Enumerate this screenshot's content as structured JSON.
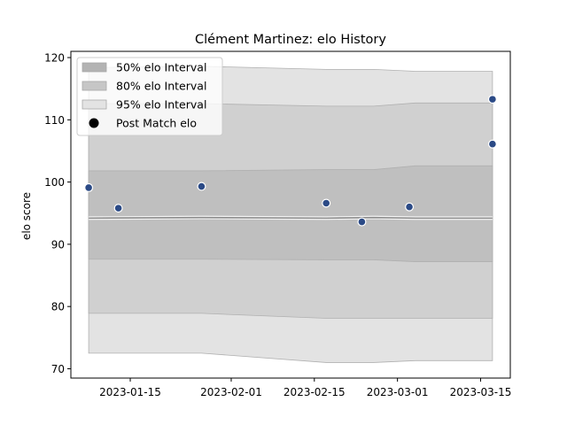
{
  "chart_data": {
    "type": "line",
    "title": "Clément Martinez: elo History",
    "xlabel": "",
    "ylabel": "elo score",
    "x_ticks": [
      "2023-01-15",
      "2023-02-01",
      "2023-02-15",
      "2023-03-01",
      "2023-03-15"
    ],
    "y_ticks": [
      70,
      80,
      90,
      100,
      110,
      120
    ],
    "xlim": [
      "2023-01-05",
      "2023-03-20"
    ],
    "ylim": [
      68.5,
      121
    ],
    "grid": false,
    "legend_position": "top-left",
    "legend": [
      "50% elo Interval",
      "80% elo Interval",
      "95% elo Interval",
      "Post Match elo"
    ],
    "mean_line": {
      "x": [
        "2023-01-08",
        "2023-01-27",
        "2023-02-17",
        "2023-02-25",
        "2023-03-04",
        "2023-03-17"
      ],
      "y": [
        94.2,
        94.3,
        94.2,
        94.3,
        94.2,
        94.2
      ]
    },
    "bands": [
      {
        "name": "95% elo Interval",
        "color": "#e3e3e3",
        "x": [
          "2023-01-08",
          "2023-01-27",
          "2023-02-17",
          "2023-02-25",
          "2023-03-04",
          "2023-03-17"
        ],
        "lower": [
          72.5,
          72.5,
          71.0,
          71.0,
          71.3,
          71.3
        ],
        "upper": [
          118.4,
          118.6,
          118.1,
          118.1,
          117.8,
          117.8
        ]
      },
      {
        "name": "80% elo Interval",
        "color": "#d0d0d0",
        "x": [
          "2023-01-08",
          "2023-01-27",
          "2023-02-17",
          "2023-02-25",
          "2023-03-04",
          "2023-03-17"
        ],
        "lower": [
          78.9,
          78.9,
          78.1,
          78.1,
          78.1,
          78.1
        ],
        "upper": [
          112.6,
          112.6,
          112.2,
          112.2,
          112.7,
          112.7
        ]
      },
      {
        "name": "50% elo Interval",
        "color": "#bfbfbf",
        "x": [
          "2023-01-08",
          "2023-01-27",
          "2023-02-17",
          "2023-02-25",
          "2023-03-04",
          "2023-03-17"
        ],
        "lower": [
          87.6,
          87.6,
          87.5,
          87.5,
          87.2,
          87.2
        ],
        "upper": [
          101.8,
          101.8,
          102.0,
          102.0,
          102.6,
          102.6
        ]
      }
    ],
    "points": {
      "name": "Post Match elo",
      "color": "#2b4a86",
      "x": [
        "2023-01-08",
        "2023-01-13",
        "2023-01-27",
        "2023-02-17",
        "2023-02-23",
        "2023-03-03",
        "2023-03-17",
        "2023-03-17"
      ],
      "y": [
        99.1,
        95.8,
        99.3,
        96.6,
        93.6,
        96.0,
        113.3,
        106.1
      ]
    }
  }
}
